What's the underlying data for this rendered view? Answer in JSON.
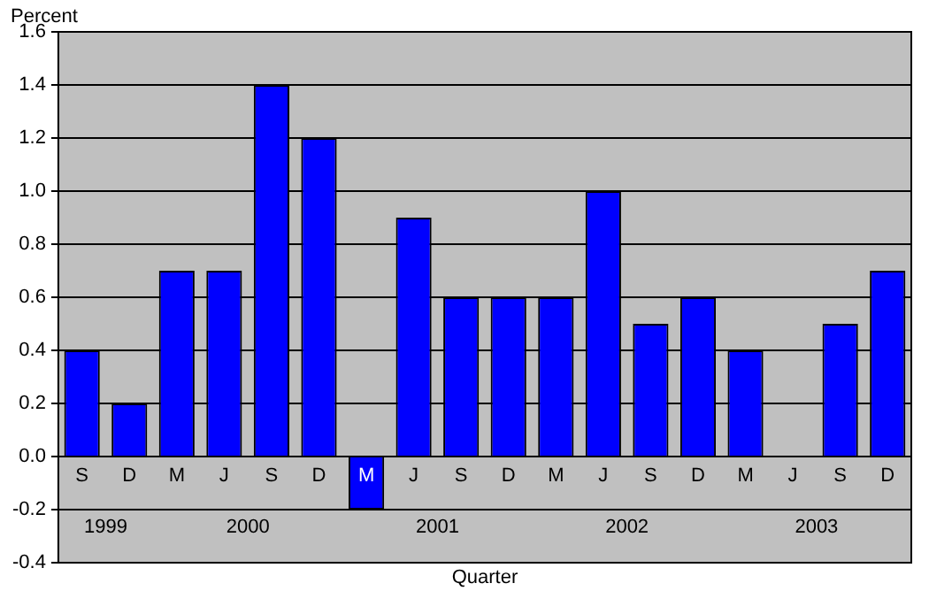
{
  "chart_data": {
    "type": "bar",
    "ylabel": "Percent",
    "xlabel": "Quarter",
    "categories": [
      "S",
      "D",
      "M",
      "J",
      "S",
      "D",
      "M",
      "J",
      "S",
      "D",
      "M",
      "J",
      "S",
      "D",
      "M",
      "J",
      "S",
      "D"
    ],
    "values": [
      0.4,
      0.2,
      0.7,
      0.7,
      1.4,
      1.2,
      -0.2,
      0.9,
      0.6,
      0.6,
      0.6,
      1.0,
      0.5,
      0.6,
      0.4,
      0.0,
      0.5,
      0.7
    ],
    "color": "#0000ff",
    "ylim": [
      -0.4,
      1.6
    ],
    "yticks": [
      -0.4,
      -0.2,
      {
        "value": 0,
        "label": "0.0"
      },
      0.2,
      0.4,
      0.6,
      0.8,
      {
        "value": 1,
        "label": "1.0"
      },
      1.2,
      1.4,
      1.6
    ],
    "grid": "y",
    "annotations": [
      "1999",
      "2000",
      "2001",
      "2002",
      "2003"
    ]
  }
}
